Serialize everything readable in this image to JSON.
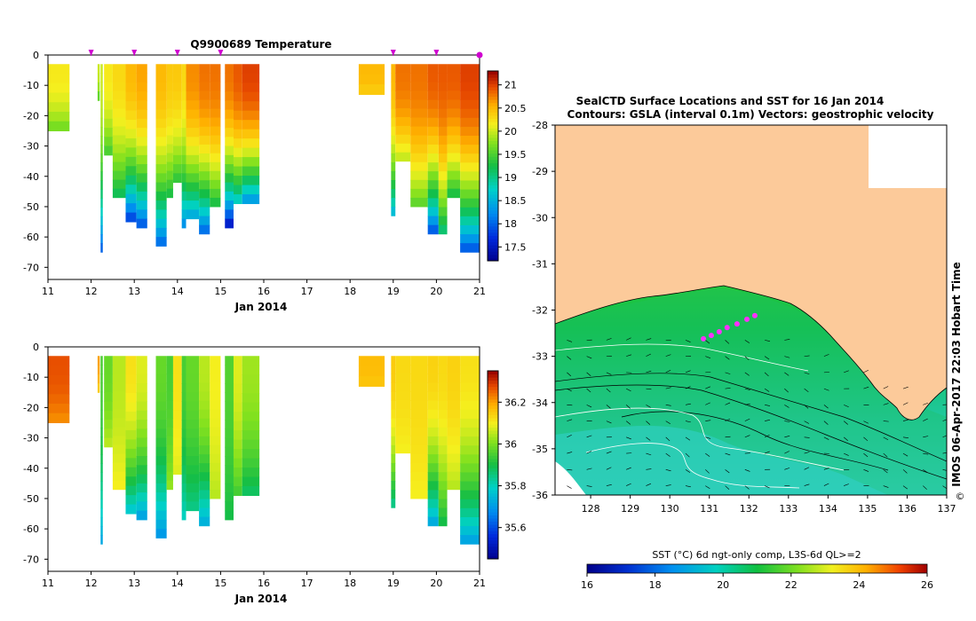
{
  "figure": {
    "title": "Q9900689  Temperature",
    "date_axis_label": "Jan 2014",
    "map_title_line1": "SealCTD Surface Locations and SST for 16 Jan 2014",
    "map_title_line2": "Contours: GSLA (interval 0.1m) Vectors: geostrophic velocity",
    "credit": "IMOS 06-Apr-2017 22:03 Hobart Time",
    "copyright_symbol": "©",
    "sst_colorbar_label": "SST (°C) 6d ngt-only comp, L3S-6d QL>=2"
  },
  "chart_data": [
    {
      "type": "heatmap",
      "name": "temperature-section",
      "title": "Q9900689  Temperature",
      "xlabel": "Jan 2014",
      "ylabel": "",
      "x_ticks": [
        11,
        12,
        13,
        14,
        15,
        16,
        17,
        18,
        19,
        20,
        21
      ],
      "xlim": [
        11,
        21
      ],
      "y_ticks": [
        0,
        -10,
        -20,
        -30,
        -40,
        -50,
        -60,
        -70
      ],
      "ylim": [
        -74,
        0
      ],
      "profile_markers": [
        12.0,
        13.0,
        14.0,
        15.0,
        19.0,
        20.0,
        21.0
      ],
      "colorbar": {
        "min": 17.2,
        "max": 21.3,
        "ticks": [
          17.5,
          18,
          18.5,
          19,
          19.5,
          20,
          20.5,
          21
        ]
      },
      "profiles": [
        {
          "x0": 11.0,
          "x1": 11.5,
          "depth": 25,
          "top": 20.2,
          "bottom": 19.7
        },
        {
          "x0": 12.15,
          "x1": 12.2,
          "depth": 15,
          "top": 20.0,
          "bottom": 19.6
        },
        {
          "x0": 12.22,
          "x1": 12.27,
          "depth": 65,
          "top": 20.0,
          "bottom": 18.0
        },
        {
          "x0": 12.3,
          "x1": 12.5,
          "depth": 33,
          "top": 20.2,
          "bottom": 19.5
        },
        {
          "x0": 12.5,
          "x1": 12.8,
          "depth": 47,
          "top": 20.3,
          "bottom": 19.2
        },
        {
          "x0": 12.8,
          "x1": 13.05,
          "depth": 55,
          "top": 20.5,
          "bottom": 17.9
        },
        {
          "x0": 13.05,
          "x1": 13.3,
          "depth": 57,
          "top": 20.6,
          "bottom": 18.0
        },
        {
          "x0": 13.5,
          "x1": 13.75,
          "depth": 63,
          "top": 20.5,
          "bottom": 18.1
        },
        {
          "x0": 13.75,
          "x1": 13.9,
          "depth": 47,
          "top": 20.4,
          "bottom": 19.3
        },
        {
          "x0": 13.9,
          "x1": 14.1,
          "depth": 42,
          "top": 20.4,
          "bottom": 19.4
        },
        {
          "x0": 14.1,
          "x1": 14.2,
          "depth": 57,
          "top": 20.3,
          "bottom": 18.3
        },
        {
          "x0": 14.2,
          "x1": 14.5,
          "depth": 54,
          "top": 20.7,
          "bottom": 18.5
        },
        {
          "x0": 14.5,
          "x1": 14.75,
          "depth": 59,
          "top": 20.8,
          "bottom": 18.1
        },
        {
          "x0": 14.75,
          "x1": 15.0,
          "depth": 50,
          "top": 20.8,
          "bottom": 19.3
        },
        {
          "x0": 15.1,
          "x1": 15.3,
          "depth": 57,
          "top": 20.8,
          "bottom": 17.6
        },
        {
          "x0": 15.3,
          "x1": 15.5,
          "depth": 49,
          "top": 20.9,
          "bottom": 18.8
        },
        {
          "x0": 15.5,
          "x1": 15.9,
          "depth": 49,
          "top": 21.0,
          "bottom": 18.4
        },
        {
          "x0": 18.2,
          "x1": 18.8,
          "depth": 13,
          "top": 20.5,
          "bottom": 20.4
        },
        {
          "x0": 18.95,
          "x1": 19.05,
          "depth": 53,
          "top": 20.5,
          "bottom": 18.6
        },
        {
          "x0": 19.05,
          "x1": 19.4,
          "depth": 35,
          "top": 20.8,
          "bottom": 20.0
        },
        {
          "x0": 19.4,
          "x1": 19.8,
          "depth": 50,
          "top": 20.8,
          "bottom": 19.6
        },
        {
          "x0": 19.8,
          "x1": 20.05,
          "depth": 59,
          "top": 20.9,
          "bottom": 18.0
        },
        {
          "x0": 20.05,
          "x1": 20.25,
          "depth": 59,
          "top": 20.9,
          "bottom": 19.1
        },
        {
          "x0": 20.25,
          "x1": 20.55,
          "depth": 47,
          "top": 20.9,
          "bottom": 19.3
        },
        {
          "x0": 20.55,
          "x1": 21.0,
          "depth": 65,
          "top": 21.0,
          "bottom": 18.0
        }
      ]
    },
    {
      "type": "heatmap",
      "name": "salinity-section",
      "title": "",
      "xlabel": "Jan 2014",
      "ylabel": "",
      "x_ticks": [
        11,
        12,
        13,
        14,
        15,
        16,
        17,
        18,
        19,
        20,
        21
      ],
      "xlim": [
        11,
        21
      ],
      "y_ticks": [
        0,
        -10,
        -20,
        -30,
        -40,
        -50,
        -60,
        -70
      ],
      "ylim": [
        -74,
        0
      ],
      "colorbar": {
        "min": 35.45,
        "max": 36.35,
        "ticks": [
          35.6,
          35.8,
          36,
          36.2
        ]
      },
      "profiles": [
        {
          "x0": 11.0,
          "x1": 11.5,
          "depth": 25,
          "top": 36.27,
          "bottom": 36.22
        },
        {
          "x0": 12.15,
          "x1": 12.2,
          "depth": 15,
          "top": 36.2,
          "bottom": 36.15
        },
        {
          "x0": 12.22,
          "x1": 12.27,
          "depth": 65,
          "top": 35.95,
          "bottom": 35.72
        },
        {
          "x0": 12.3,
          "x1": 12.5,
          "depth": 33,
          "top": 35.98,
          "bottom": 36.05
        },
        {
          "x0": 12.5,
          "x1": 12.8,
          "depth": 47,
          "top": 36.05,
          "bottom": 36.1
        },
        {
          "x0": 12.8,
          "x1": 13.05,
          "depth": 55,
          "top": 36.12,
          "bottom": 35.78
        },
        {
          "x0": 13.05,
          "x1": 13.3,
          "depth": 57,
          "top": 36.08,
          "bottom": 35.72
        },
        {
          "x0": 13.5,
          "x1": 13.75,
          "depth": 63,
          "top": 35.98,
          "bottom": 35.7
        },
        {
          "x0": 13.75,
          "x1": 13.9,
          "depth": 47,
          "top": 35.95,
          "bottom": 36.02
        },
        {
          "x0": 13.9,
          "x1": 14.1,
          "depth": 42,
          "top": 36.12,
          "bottom": 36.08
        },
        {
          "x0": 14.1,
          "x1": 14.2,
          "depth": 57,
          "top": 35.95,
          "bottom": 35.8
        },
        {
          "x0": 14.2,
          "x1": 14.5,
          "depth": 54,
          "top": 35.98,
          "bottom": 35.85
        },
        {
          "x0": 14.5,
          "x1": 14.75,
          "depth": 59,
          "top": 36.05,
          "bottom": 35.74
        },
        {
          "x0": 14.75,
          "x1": 15.0,
          "depth": 50,
          "top": 36.1,
          "bottom": 36.05
        },
        {
          "x0": 15.1,
          "x1": 15.3,
          "depth": 57,
          "top": 35.96,
          "bottom": 35.9
        },
        {
          "x0": 15.3,
          "x1": 15.5,
          "depth": 49,
          "top": 36.08,
          "bottom": 35.95
        },
        {
          "x0": 15.5,
          "x1": 15.9,
          "depth": 49,
          "top": 36.03,
          "bottom": 35.88
        },
        {
          "x0": 18.2,
          "x1": 18.8,
          "depth": 13,
          "top": 36.17,
          "bottom": 36.16
        },
        {
          "x0": 18.95,
          "x1": 19.05,
          "depth": 53,
          "top": 36.15,
          "bottom": 35.85
        },
        {
          "x0": 19.05,
          "x1": 19.4,
          "depth": 35,
          "top": 36.13,
          "bottom": 36.1
        },
        {
          "x0": 19.4,
          "x1": 19.8,
          "depth": 50,
          "top": 36.13,
          "bottom": 36.1
        },
        {
          "x0": 19.8,
          "x1": 20.05,
          "depth": 59,
          "top": 36.14,
          "bottom": 35.73
        },
        {
          "x0": 20.05,
          "x1": 20.25,
          "depth": 59,
          "top": 36.13,
          "bottom": 35.9
        },
        {
          "x0": 20.25,
          "x1": 20.55,
          "depth": 47,
          "top": 36.14,
          "bottom": 36.05
        },
        {
          "x0": 20.55,
          "x1": 21.0,
          "depth": 65,
          "top": 36.12,
          "bottom": 35.72
        }
      ]
    },
    {
      "type": "heatmap",
      "name": "sst-map",
      "title": "SealCTD Surface Locations and SST for 16 Jan 2014",
      "subtitle": "Contours: GSLA (interval 0.1m) Vectors: geostrophic velocity",
      "xlabel": "",
      "ylabel": "",
      "x_ticks": [
        128,
        129,
        130,
        131,
        132,
        133,
        134,
        135,
        136,
        137
      ],
      "xlim": [
        127.1,
        137
      ],
      "y_ticks": [
        -28,
        -29,
        -30,
        -31,
        -32,
        -33,
        -34,
        -35,
        -36
      ],
      "ylim": [
        -36,
        -28
      ],
      "colorbar": {
        "label": "SST (°C) 6d ngt-only comp, L3S-6d QL>=2",
        "min": 16,
        "max": 26,
        "ticks": [
          16,
          18,
          20,
          22,
          24,
          26
        ]
      },
      "land_colour": "#fcca9a",
      "seal_track": [
        [
          130.85,
          -32.62
        ],
        [
          131.05,
          -32.55
        ],
        [
          131.25,
          -32.47
        ],
        [
          131.45,
          -32.38
        ],
        [
          131.7,
          -32.3
        ],
        [
          131.95,
          -32.2
        ],
        [
          132.15,
          -32.12
        ]
      ]
    }
  ],
  "colours": {
    "land": "#fcca9a",
    "marker": "#d000d0",
    "seal_track": "#ff30ff",
    "contour_white": "#ffffff",
    "contour_black": "#000000"
  }
}
